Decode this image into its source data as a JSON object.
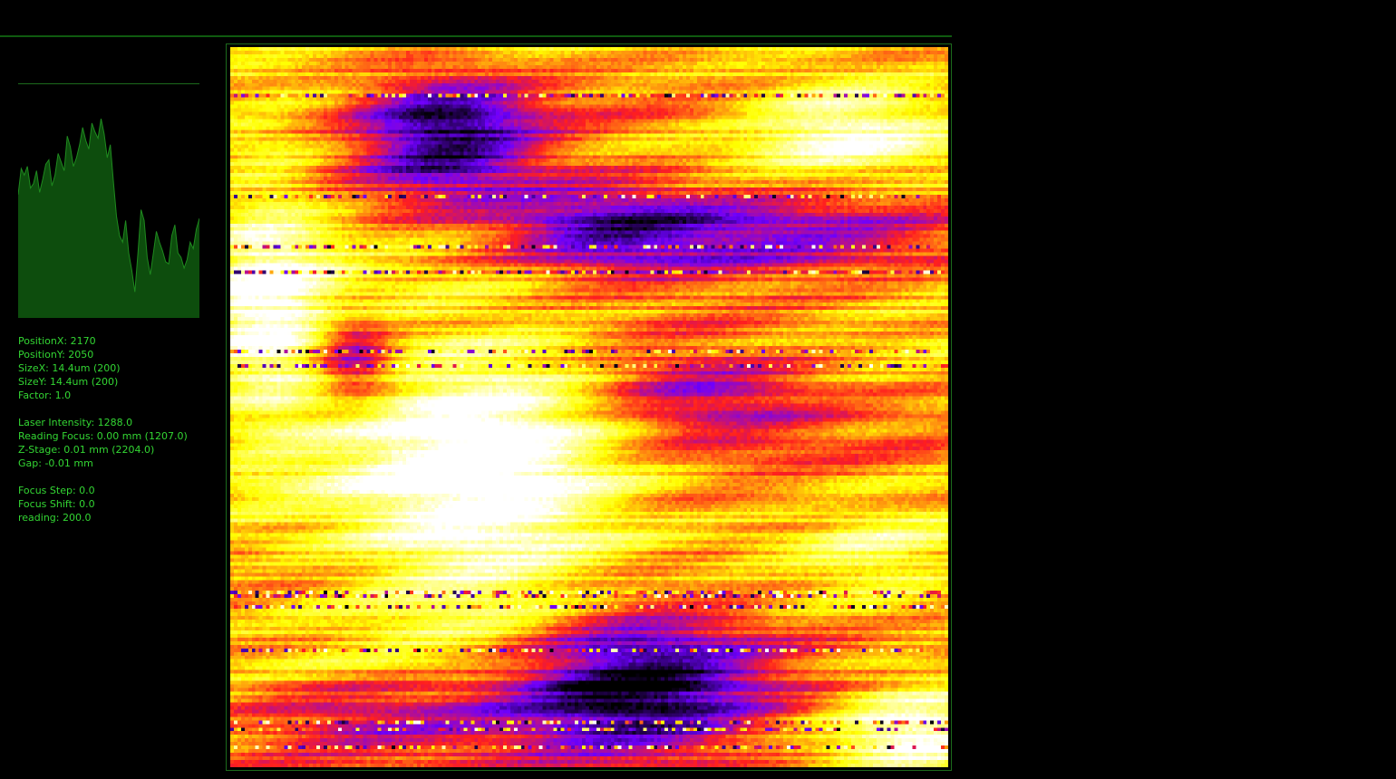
{
  "palette": {
    "background": "#000000",
    "text": "#33d633",
    "histogram_fill": "#0d4d0d",
    "histogram_line": "#1f8a1f",
    "frame": "#1c6b1c",
    "heatmap_colors": [
      "#000000",
      "#7a00ff",
      "#ff2020",
      "#ffff00",
      "#ffffff"
    ]
  },
  "histogram": {
    "icon": "intensity-histogram",
    "values": [
      0.57,
      0.69,
      0.66,
      0.7,
      0.6,
      0.62,
      0.68,
      0.58,
      0.64,
      0.71,
      0.73,
      0.61,
      0.66,
      0.76,
      0.72,
      0.68,
      0.84,
      0.79,
      0.7,
      0.74,
      0.8,
      0.88,
      0.82,
      0.78,
      0.9,
      0.86,
      0.83,
      0.92,
      0.85,
      0.74,
      0.8,
      0.63,
      0.47,
      0.38,
      0.35,
      0.45,
      0.3,
      0.22,
      0.12,
      0.3,
      0.5,
      0.45,
      0.28,
      0.2,
      0.3,
      0.4,
      0.35,
      0.31,
      0.26,
      0.25,
      0.38,
      0.43,
      0.3,
      0.28,
      0.23,
      0.27,
      0.35,
      0.32,
      0.41,
      0.46
    ]
  },
  "readout": {
    "position_x": "PositionX: 2170",
    "position_y": "PositionY: 2050",
    "size_x": "SizeX: 14.4um (200)",
    "size_y": "SizeY: 14.4um (200)",
    "factor": "Factor: 1.0",
    "laser_intensity": "Laser Intensity: 1288.0",
    "reading_focus": "Reading Focus: 0.00 mm (1207.0)",
    "z_stage": "Z-Stage: 0.01 mm (2204.0)",
    "gap": "Gap: -0.01 mm",
    "focus_step": "Focus Step: 0.0",
    "focus_shift": "Focus Shift: 0.0",
    "reading": "reading: 200.0"
  },
  "scan": {
    "grid_size": 200,
    "colormap": "black-purple-red-yellow-white"
  }
}
